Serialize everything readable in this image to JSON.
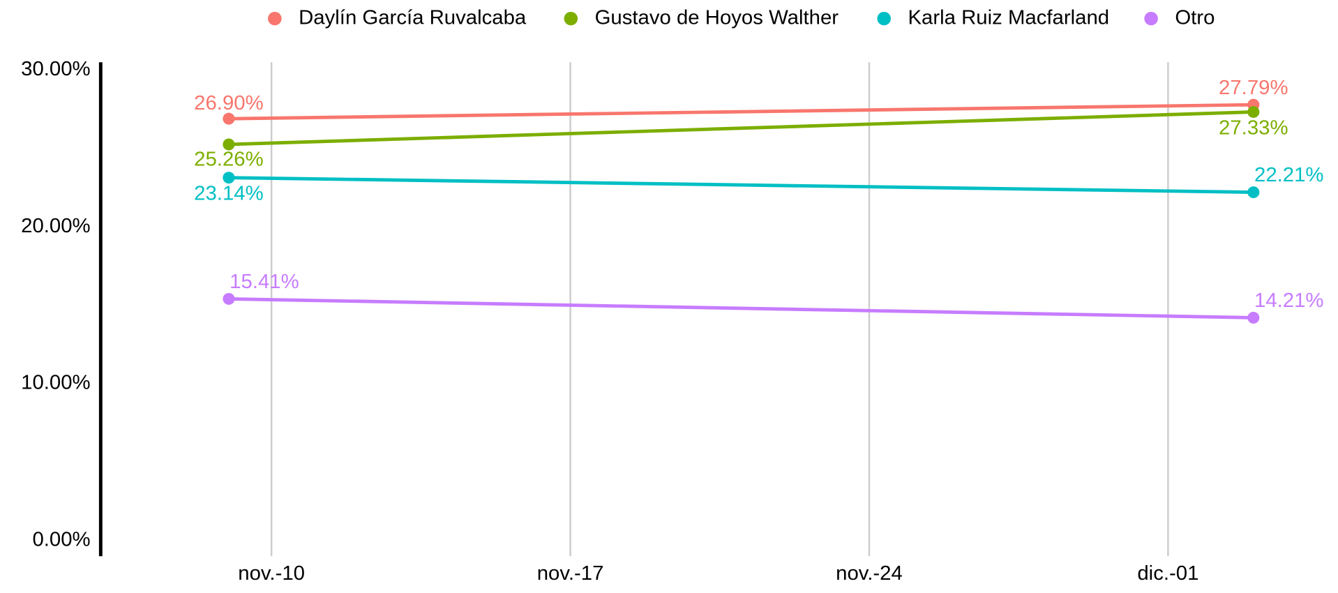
{
  "chart_data": {
    "type": "line",
    "xlim": [
      6,
      35
    ],
    "xticks": [
      {
        "value": 10,
        "label": "nov.-10"
      },
      {
        "value": 17,
        "label": "nov.-17"
      },
      {
        "value": 24,
        "label": "nov.-24"
      },
      {
        "value": 31,
        "label": "dic.-01"
      }
    ],
    "ylim": [
      -1,
      30.5
    ],
    "yticks": [
      {
        "value": 0,
        "label": "0.00%"
      },
      {
        "value": 10,
        "label": "10.00%"
      },
      {
        "value": 20,
        "label": "20.00%"
      },
      {
        "value": 30,
        "label": "30.00%"
      }
    ],
    "grid": "x",
    "legend": "top",
    "x": [
      9,
      33
    ],
    "series": [
      {
        "name": "Daylín García Ruvalcaba",
        "color": "#F8766D",
        "values": [
          26.9,
          27.79
        ],
        "value_labels": [
          "26.90%",
          "27.79%"
        ]
      },
      {
        "name": "Gustavo de Hoyos Walther",
        "color": "#7CAE00",
        "values": [
          25.26,
          27.33
        ],
        "value_labels": [
          "25.26%",
          "27.33%"
        ]
      },
      {
        "name": "Karla Ruiz Macfarland",
        "color": "#00BFC4",
        "values": [
          23.14,
          22.21
        ],
        "value_labels": [
          "23.14%",
          "22.21%"
        ]
      },
      {
        "name": "Otro",
        "color": "#C77CFF",
        "values": [
          15.41,
          14.21
        ],
        "value_labels": [
          "15.41%",
          "14.21%"
        ]
      }
    ]
  }
}
